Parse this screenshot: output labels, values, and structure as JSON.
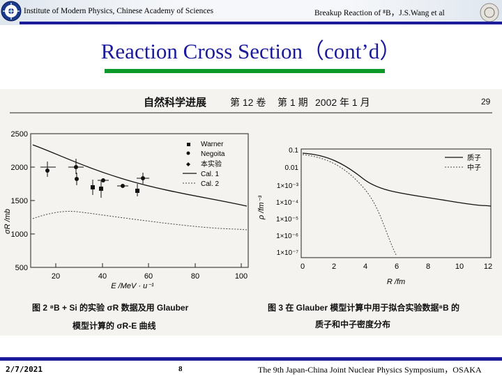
{
  "header": {
    "institute": "Institute of Modern Physics, Chinese Academy of Sciences",
    "talk": "Breakup Reaction of ⁸B，J.S.Wang  et al"
  },
  "slide": {
    "title": "Reaction Cross Section（cont’d）"
  },
  "journal": {
    "name": "自然科学进展",
    "volume": "第 12 卷",
    "issue": "第 1 期",
    "date": "2002 年 1 月",
    "page": "29"
  },
  "fig2": {
    "yticks": [
      "2500",
      "2000",
      "1500",
      "1000",
      "500"
    ],
    "xticks": [
      "20",
      "40",
      "60",
      "80",
      "100"
    ],
    "ylabel": "σR /mb",
    "xlabel": "E /MeV · u⁻¹",
    "legend": [
      "Warner",
      "Negoita",
      "本实验",
      "Cal. 1",
      "Cal. 2"
    ],
    "caption_line1": "图 2   ⁸B + Si 的实验 σR 数据及用 Glauber",
    "caption_line2": "模型计算的 σR-E 曲线"
  },
  "fig3": {
    "yticks": [
      "0.1",
      "0.01",
      "1×10⁻³",
      "1×10⁻⁴",
      "1×10⁻⁵",
      "1×10⁻⁶",
      "1×10⁻⁷"
    ],
    "xticks": [
      "0",
      "2",
      "4",
      "6",
      "8",
      "10",
      "12"
    ],
    "ylabel": "ρ /fm⁻³",
    "xlabel": "R /fm",
    "legend": [
      "质子",
      "中子"
    ],
    "caption_line1": "图 3   在 Glauber 模型计算中用于拟合实验数据⁸B 的",
    "caption_line2": "质子和中子密度分布"
  },
  "footer": {
    "date": "2/7/2021",
    "page": "8",
    "symposium": "The 9th Japan-China Joint Nuclear Physics Symposium，OSAKA"
  }
}
